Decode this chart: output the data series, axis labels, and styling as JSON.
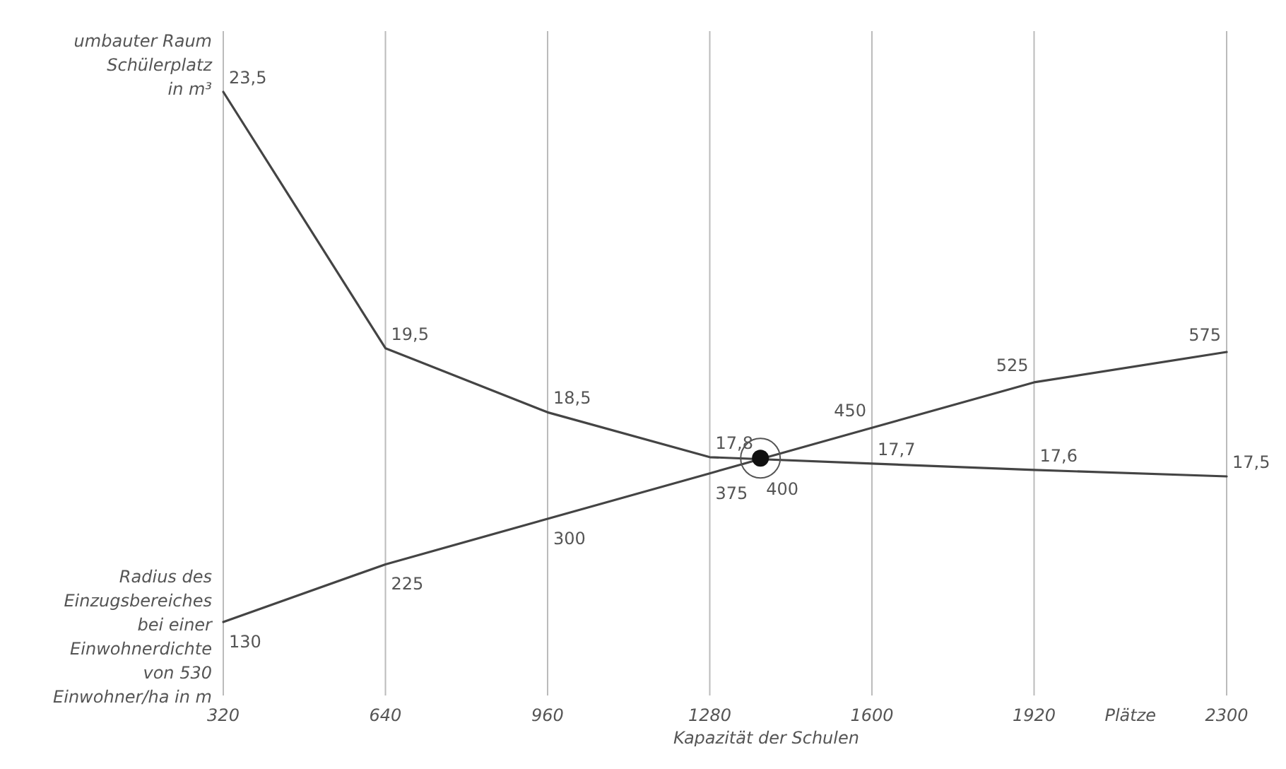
{
  "chart_data": {
    "type": "line",
    "xlabel": "Kapazität der Schulen",
    "x": [
      320,
      640,
      960,
      1280,
      1600,
      1920,
      2300
    ],
    "xlim": [
      320,
      2300
    ],
    "xticks": [
      320,
      640,
      960,
      1280,
      1600,
      1920,
      2300
    ],
    "grid": "x",
    "tick_labels": "x",
    "marker": "none",
    "line_style": "solid",
    "series": [
      {
        "name": "umbauter Raum Schülerplatz in m³",
        "color": "#444444",
        "values": [
          23.5,
          19.5,
          18.5,
          17.8,
          17.7,
          17.6,
          17.5
        ],
        "value_labels": [
          "23,5",
          "19,5",
          "18,5",
          "17,8",
          "17,7",
          "17,6",
          "17,5"
        ]
      },
      {
        "name": "Radius des Einzugsbereiches bei einer Einwohnerdichte von 530 Einwohner/ha in m",
        "color": "#444444",
        "axis": "y2",
        "values": [
          130,
          225,
          300,
          375,
          450,
          525,
          575
        ],
        "value_labels": [
          "130",
          "225",
          "300",
          "375",
          "450",
          "525",
          "575"
        ]
      },
      {
        "type": "scatter",
        "marker": "circle",
        "color": "#111111",
        "axis": "y2",
        "x": [
          1380
        ],
        "values": [
          400
        ],
        "value_labels": [
          "400"
        ]
      }
    ],
    "annotations": [
      "Plätze"
    ]
  }
}
